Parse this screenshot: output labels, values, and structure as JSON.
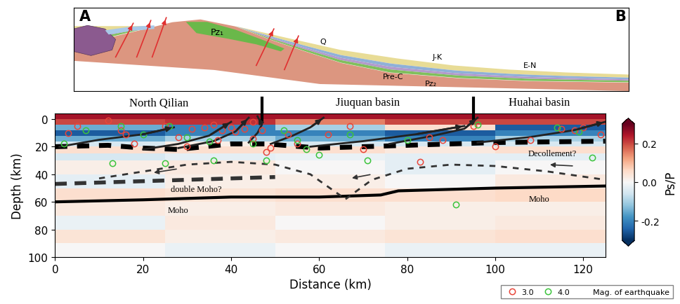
{
  "chart_data": {
    "type": "heatmap",
    "xlabel": "Distance (km)",
    "ylabel": "Depth (km)",
    "xlim": [
      0,
      125
    ],
    "ylim": [
      100,
      -4
    ],
    "xticks": [
      0,
      20,
      40,
      60,
      80,
      100,
      120
    ],
    "yticks": [
      0,
      20,
      40,
      60,
      80,
      100
    ],
    "x_edges": [
      0,
      25,
      50,
      75,
      100,
      125
    ],
    "depth_edges": [
      -4,
      0,
      4,
      8,
      12,
      16,
      20,
      25,
      30,
      40,
      50,
      60,
      70,
      80,
      90,
      100
    ],
    "cells": [
      [
        0.25,
        0.25,
        0.25,
        0.25,
        0.25
      ],
      [
        0.2,
        0.22,
        0.15,
        0.2,
        0.2
      ],
      [
        -0.15,
        -0.2,
        -0.1,
        0.05,
        -0.25
      ],
      [
        -0.25,
        -0.2,
        -0.2,
        -0.25,
        -0.2
      ],
      [
        -0.15,
        -0.1,
        -0.15,
        -0.2,
        -0.1
      ],
      [
        -0.05,
        0.02,
        -0.05,
        -0.05,
        -0.05
      ],
      [
        0.05,
        0.05,
        0.05,
        0.03,
        0.05
      ],
      [
        -0.05,
        -0.03,
        -0.02,
        -0.03,
        -0.03
      ],
      [
        0.02,
        0.03,
        0.0,
        -0.03,
        0.0
      ],
      [
        -0.03,
        0.02,
        0.02,
        0.0,
        0.03
      ],
      [
        0.05,
        0.04,
        0.05,
        0.05,
        0.06
      ],
      [
        0.03,
        0.02,
        0.03,
        0.02,
        0.02
      ],
      [
        -0.02,
        0.03,
        0.0,
        0.02,
        0.03
      ],
      [
        0.04,
        0.02,
        0.03,
        0.04,
        0.05
      ],
      [
        0.0,
        -0.02,
        0.0,
        -0.02,
        -0.02
      ]
    ],
    "colorbar": {
      "label": "Ps/P",
      "range": [
        -0.3,
        0.3
      ],
      "ticks": [
        -0.2,
        {
          "value": 0,
          "label": "0.0"
        },
        0.2
      ]
    },
    "region_labels": [
      "North Qilian",
      "Jiuquan basin",
      "Huahai basin"
    ],
    "boundaries": [
      47,
      95
    ],
    "annotations": [
      "double Moho?",
      "Moho",
      "Moho",
      "Decollement?"
    ],
    "moho": {
      "x": [
        0,
        20,
        40,
        60,
        74,
        78,
        100,
        125
      ],
      "y": [
        60,
        58.5,
        56.5,
        56.5,
        55,
        52,
        50,
        48.5
      ]
    },
    "double_moho": {
      "x": [
        0,
        50
      ],
      "y": [
        47,
        42
      ]
    },
    "decollement": {
      "x": [
        0,
        12,
        20,
        28,
        40,
        48,
        60,
        80,
        100,
        125
      ],
      "y": [
        20,
        19,
        21,
        22,
        18,
        18,
        21,
        19,
        17,
        16
      ]
    },
    "dashed_boundaries": [
      {
        "x": [
          10,
          20,
          30,
          40,
          50,
          58,
          66
        ],
        "y": [
          43,
          38,
          33,
          31,
          33,
          40,
          58
        ]
      },
      {
        "x": [
          66,
          72,
          80,
          90,
          100,
          112,
          125
        ],
        "y": [
          58,
          44,
          36,
          33,
          34,
          38,
          44
        ]
      }
    ],
    "motion_arrows": [
      [
        28,
        36,
        22,
        39
      ],
      [
        72,
        40,
        67,
        43
      ],
      [
        118,
        34,
        112,
        33
      ]
    ],
    "faults": [
      {
        "x": [
          1,
          10,
          20,
          27
        ],
        "y": [
          20,
          15,
          11,
          6
        ]
      },
      {
        "x": [
          20,
          28,
          35,
          40
        ],
        "y": [
          22,
          18,
          12,
          2
        ]
      },
      {
        "x": [
          28,
          36,
          41,
          44
        ],
        "y": [
          21,
          16,
          9,
          -1
        ]
      },
      {
        "x": [
          44,
          46,
          47,
          46
        ],
        "y": [
          17,
          10,
          4,
          -2
        ]
      },
      {
        "x": [
          49,
          54,
          58,
          61
        ],
        "y": [
          18,
          12,
          6,
          -1
        ]
      },
      {
        "x": [
          58,
          70,
          82,
          93
        ],
        "y": [
          20,
          16,
          11,
          5
        ]
      },
      {
        "x": [
          76,
          86,
          93,
          96
        ],
        "y": [
          18,
          12,
          7,
          -1
        ]
      },
      {
        "x": [
          96,
          108,
          118,
          125
        ],
        "y": [
          17,
          13,
          8,
          2
        ]
      }
    ],
    "series": [
      {
        "name": "3.0",
        "type": "scatter",
        "marker": "circle",
        "color": "#e8463a",
        "x": [
          3,
          5,
          12,
          15,
          16,
          18,
          25,
          28,
          30,
          31,
          34,
          36,
          37,
          38,
          40,
          41,
          43,
          45,
          45,
          47,
          48,
          49,
          53,
          55,
          62,
          67,
          70,
          83,
          85,
          88,
          95,
          100,
          108,
          115,
          118,
          120,
          124
        ],
        "y": [
          10,
          5,
          1,
          8,
          11,
          18,
          5,
          13,
          20,
          7,
          6,
          4,
          15,
          8,
          6,
          9,
          7,
          2,
          14,
          8,
          24,
          21,
          11,
          18,
          11,
          5,
          22,
          31,
          13,
          15,
          5,
          20,
          15,
          7,
          8,
          6,
          11
        ]
      },
      {
        "name": "4.0",
        "type": "scatter",
        "marker": "circle",
        "color": "#3cc43c",
        "x": [
          2,
          7,
          13,
          15,
          20,
          25,
          26,
          30,
          35,
          36,
          45,
          48,
          52,
          55,
          57,
          60,
          67,
          71,
          80,
          91,
          96,
          114,
          119,
          122
        ],
        "y": [
          18,
          8,
          32,
          5,
          11,
          32,
          5,
          13,
          16,
          30,
          18,
          30,
          8,
          15,
          22,
          26,
          11,
          30,
          15,
          62,
          4,
          6,
          9,
          28
        ]
      }
    ],
    "legend": "lower right",
    "legend_title": "Mag. of earthquake",
    "cross_section": {
      "labels": [
        "A",
        "B",
        "Q",
        "J-K",
        "E-N",
        "Pre-C",
        "Pz₁",
        "Pz₂"
      ]
    }
  }
}
